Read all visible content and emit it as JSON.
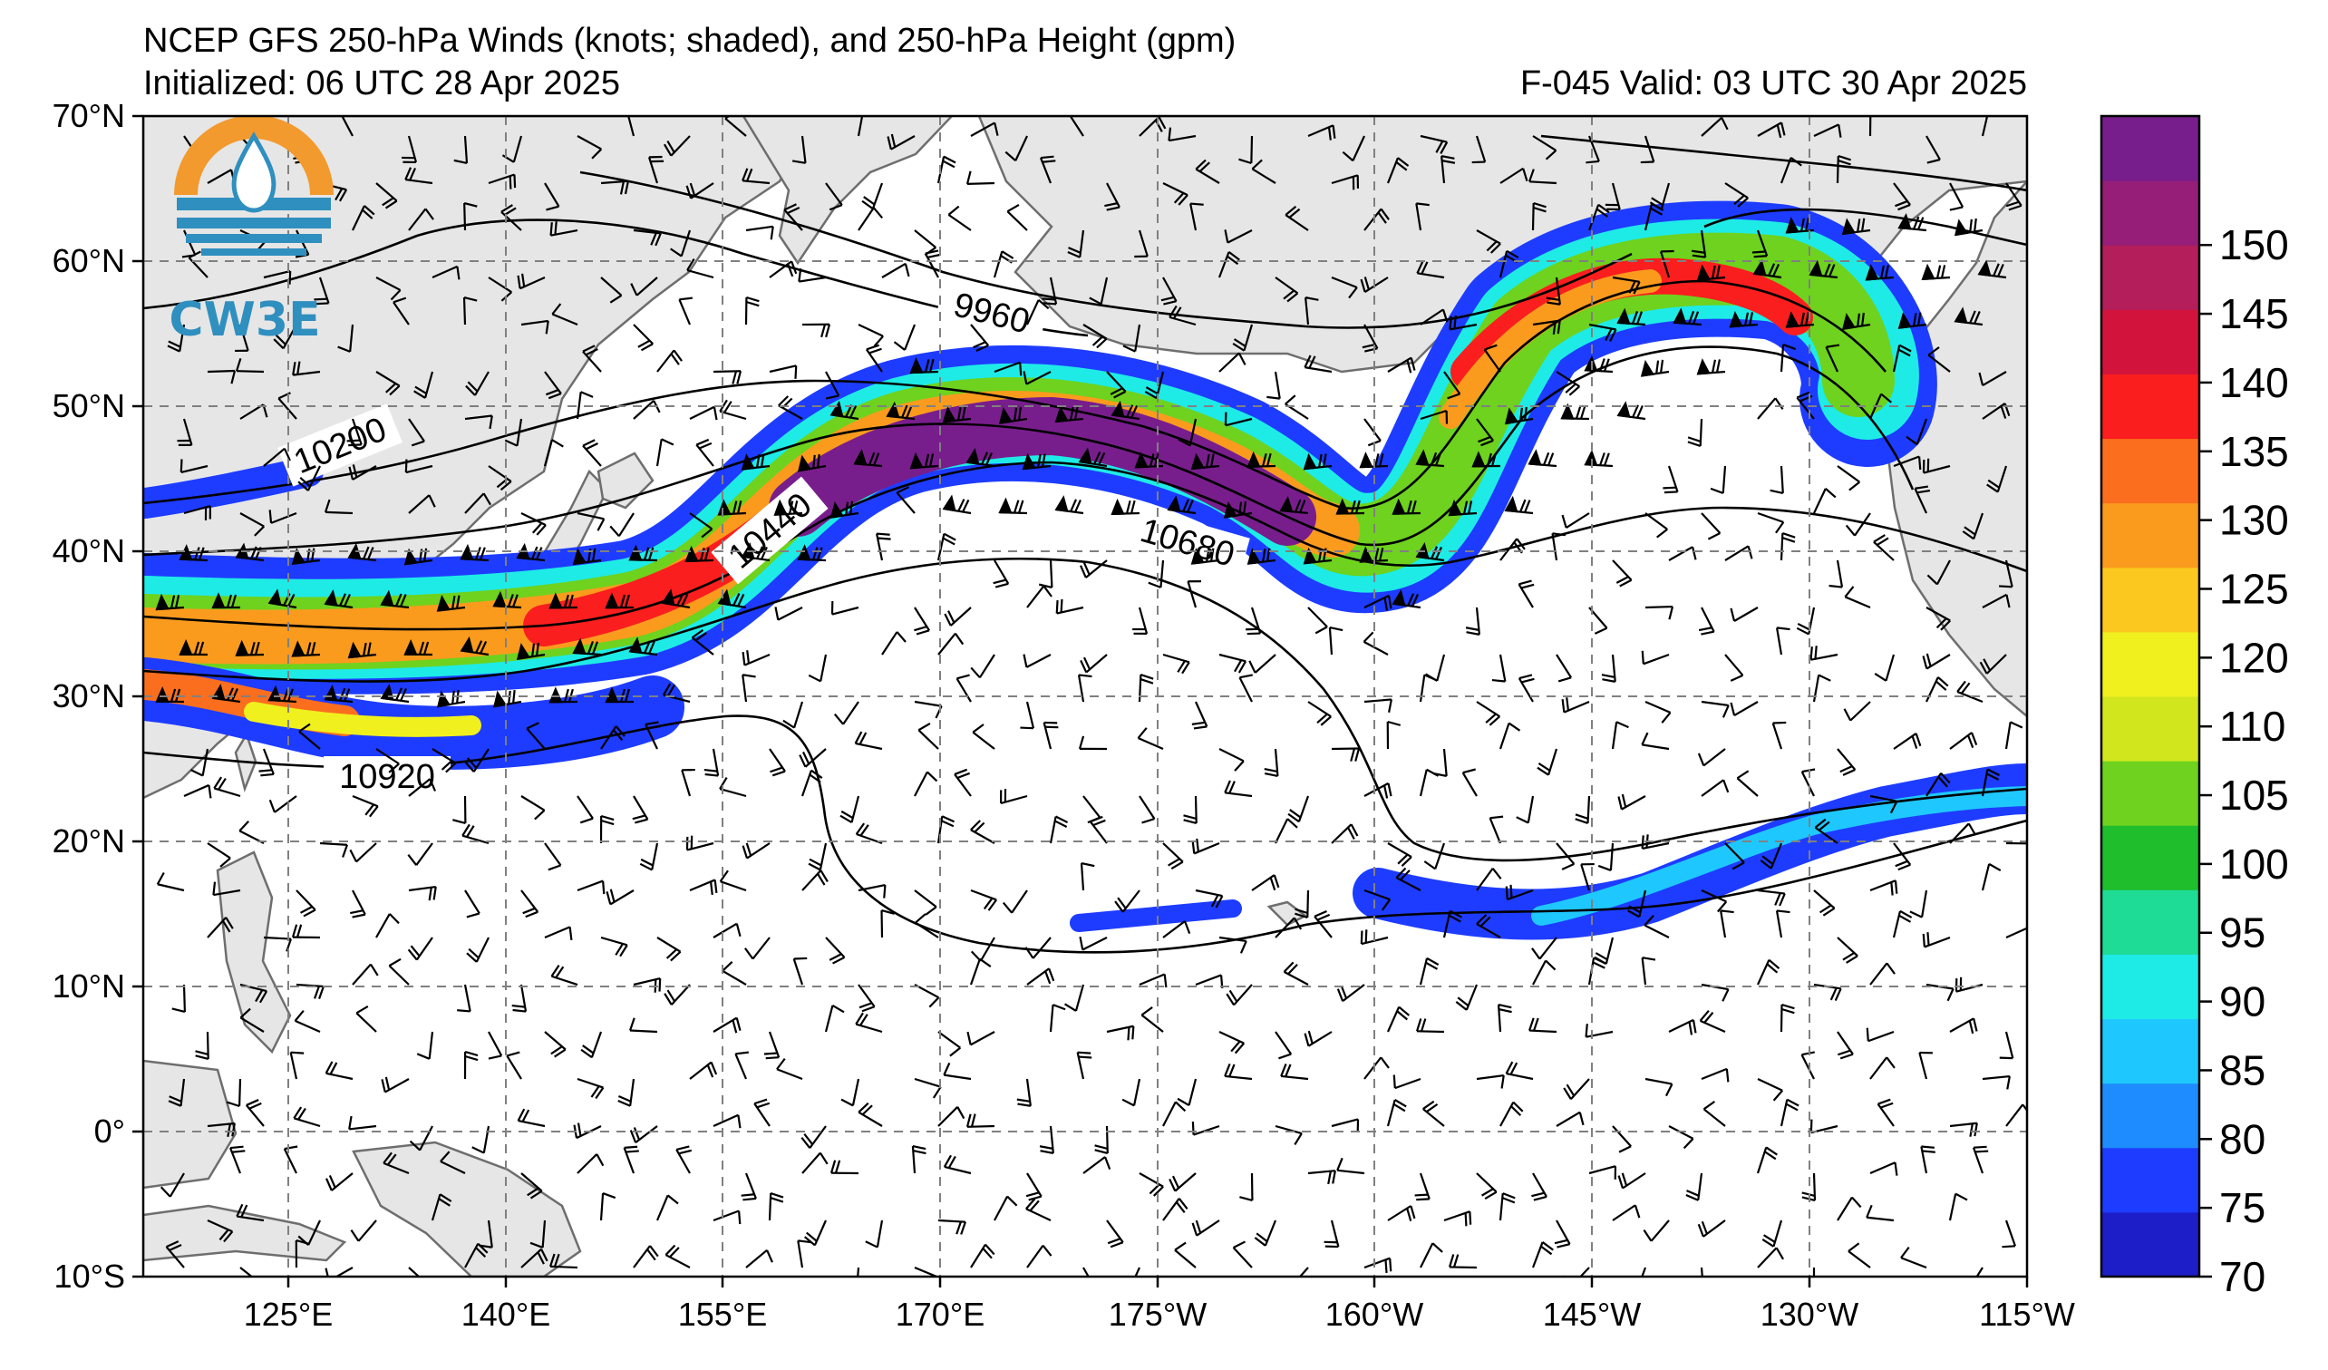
{
  "title": {
    "line1": "NCEP GFS 250-hPa Winds (knots; shaded), and 250-hPa Height (gpm)",
    "init": "Initialized: 06 UTC 28 Apr 2025",
    "valid": "F-045  Valid: 03 UTC 30 Apr 2025"
  },
  "logo": {
    "text": "CW3E"
  },
  "map": {
    "lon_labels": [
      "125°E",
      "140°E",
      "155°E",
      "170°E",
      "175°W",
      "160°W",
      "145°W",
      "130°W",
      "115°W"
    ],
    "lat_labels": [
      "70°N",
      "60°N",
      "50°N",
      "40°N",
      "30°N",
      "20°N",
      "10°N",
      "0°",
      "10°S"
    ],
    "extent": {
      "lon_west": 115,
      "lon_east": 245,
      "lat_south": -10,
      "lat_north": 70
    },
    "land_color": "#e6e6e6",
    "coast_color": "#6e6e6e",
    "gridlines": true
  },
  "contours": {
    "labels": [
      "9960",
      "10200",
      "10440",
      "10680",
      "10920"
    ]
  },
  "colorbar": {
    "ticks": [
      "70",
      "75",
      "80",
      "85",
      "90",
      "95",
      "100",
      "105",
      "110",
      "120",
      "125",
      "130",
      "135",
      "140",
      "145",
      "150"
    ],
    "colors": [
      "#1e1ec8",
      "#1e3cff",
      "#1e8cff",
      "#1ec8ff",
      "#1eebe6",
      "#1edc96",
      "#1ebe2d",
      "#6ed21e",
      "#d2e61e",
      "#f0f01e",
      "#fac81e",
      "#fa9b1e",
      "#fa6e1e",
      "#fa1e1e",
      "#d2143c",
      "#b41e5a",
      "#961e78",
      "#781e8c"
    ],
    "unit": "knots"
  }
}
